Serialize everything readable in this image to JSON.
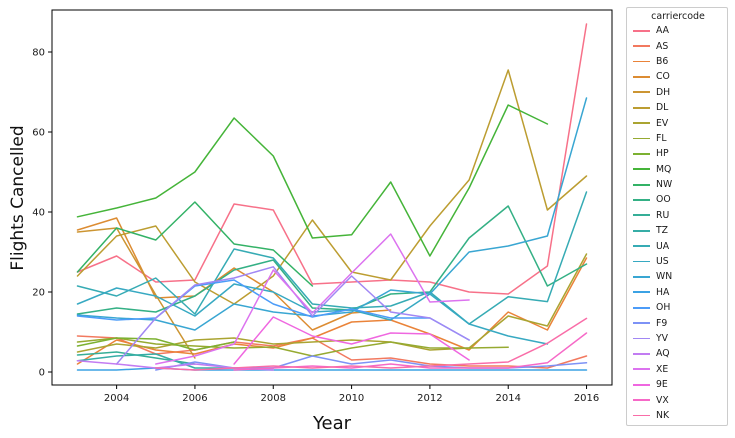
{
  "chart_data": {
    "type": "line",
    "title": "",
    "xlabel": "Year",
    "ylabel": "Flights Cancelled",
    "legend_title": "carriercode",
    "legend_position": "right-outside",
    "grid": false,
    "xlim": [
      2002.35,
      2016.65
    ],
    "ylim": [
      -3.25,
      90.5
    ],
    "x_ticks": [
      2004,
      2006,
      2008,
      2010,
      2012,
      2014,
      2016
    ],
    "y_ticks": [
      0,
      20,
      40,
      60,
      80
    ],
    "series": [
      {
        "name": "AA",
        "color": "#f77189",
        "x": [
          2003,
          2004,
          2005,
          2006,
          2007,
          2008,
          2009,
          2010,
          2011,
          2012,
          2013,
          2014,
          2015,
          2016
        ],
        "y": [
          25,
          29,
          22.5,
          23,
          42,
          40.5,
          22,
          22.5,
          23,
          22.5,
          20,
          19.5,
          26.5,
          87
        ]
      },
      {
        "name": "AS",
        "color": "#f2795f",
        "x": [
          2003,
          2004,
          2005,
          2006,
          2007,
          2008,
          2009,
          2010,
          2011,
          2012,
          2013,
          2014,
          2015,
          2016
        ],
        "y": [
          9,
          8.5,
          4.5,
          5.5,
          7.5,
          6.5,
          8.5,
          3,
          3.5,
          2,
          1.5,
          1.5,
          1,
          4
        ]
      },
      {
        "name": "B6",
        "color": "#ea8339",
        "x": [
          2003,
          2004,
          2005,
          2006,
          2007,
          2008,
          2009,
          2010,
          2011,
          2012,
          2013,
          2014,
          2015,
          2016
        ],
        "y": [
          2,
          8,
          5.5,
          4.5,
          7,
          6,
          8.5,
          12.5,
          13,
          9.5,
          5.5,
          15,
          10.5,
          28.5
        ]
      },
      {
        "name": "CO",
        "color": "#dc8c32",
        "x": [
          2003,
          2004,
          2005,
          2006,
          2007,
          2008,
          2009,
          2010,
          2011
        ],
        "y": [
          35.5,
          38.5,
          18.5,
          19,
          26,
          20,
          10.5,
          14.75,
          15.5
        ]
      },
      {
        "name": "DH",
        "color": "#cc9532",
        "x": [
          2003,
          2004,
          2005,
          2006
        ],
        "y": [
          35,
          36,
          19.25,
          3.5
        ]
      },
      {
        "name": "DL",
        "color": "#bc9d31",
        "x": [
          2003,
          2004,
          2005,
          2006,
          2007,
          2008,
          2009,
          2010,
          2011,
          2012,
          2013,
          2014,
          2015,
          2016
        ],
        "y": [
          24,
          34,
          36.5,
          22.5,
          17,
          24,
          38,
          25,
          23,
          36.5,
          48,
          75.5,
          40.5,
          49
        ]
      },
      {
        "name": "EV",
        "color": "#aaa431",
        "x": [
          2003,
          2004,
          2005,
          2006,
          2007,
          2008,
          2009,
          2010,
          2011,
          2012,
          2013,
          2014,
          2015,
          2016
        ],
        "y": [
          5,
          7,
          6,
          8,
          8.5,
          7,
          7.5,
          8,
          7.5,
          5.5,
          6,
          14,
          11.5,
          29.5
        ]
      },
      {
        "name": "FL",
        "color": "#96aa31",
        "x": [
          2003,
          2004,
          2005,
          2006,
          2007,
          2008,
          2009,
          2010,
          2011,
          2012,
          2013,
          2014
        ],
        "y": [
          7.5,
          8.5,
          7,
          6.5,
          6,
          6.25,
          4,
          6,
          7.5,
          6,
          6,
          6.2
        ]
      },
      {
        "name": "HP",
        "color": "#7cb131",
        "x": [
          2003,
          2004,
          2005,
          2006,
          2007
        ],
        "y": [
          6.5,
          8.5,
          8.25,
          5.5,
          7.5
        ]
      },
      {
        "name": "MQ",
        "color": "#45b439",
        "x": [
          2003,
          2004,
          2005,
          2006,
          2007,
          2008,
          2009,
          2010,
          2011,
          2012,
          2013,
          2014,
          2015
        ],
        "y": [
          38.8,
          41,
          43.5,
          50,
          63.5,
          54,
          33.5,
          34.3,
          47.5,
          29,
          46,
          66.75,
          62
        ]
      },
      {
        "name": "NW",
        "color": "#33b266",
        "x": [
          2003,
          2004,
          2005,
          2006,
          2007,
          2008,
          2009
        ],
        "y": [
          25,
          36,
          33,
          42.5,
          32,
          30.5,
          21.5
        ]
      },
      {
        "name": "OO",
        "color": "#34b085",
        "x": [
          2003,
          2004,
          2005,
          2006,
          2007,
          2008,
          2009,
          2010,
          2011,
          2012,
          2013,
          2014,
          2015,
          2016
        ],
        "y": [
          14.5,
          16,
          15,
          19,
          25.5,
          28,
          16,
          15.5,
          19.5,
          20,
          33.5,
          41.5,
          21.5,
          27
        ]
      },
      {
        "name": "RU",
        "color": "#35ae97",
        "x": [
          2003,
          2004,
          2005,
          2006
        ],
        "y": [
          4.25,
          5,
          3.5,
          2
        ]
      },
      {
        "name": "TZ",
        "color": "#36ada6",
        "x": [
          2003,
          2004,
          2005,
          2006,
          2007,
          2008
        ],
        "y": [
          2.8,
          4,
          4.5,
          1,
          1,
          1
        ]
      },
      {
        "name": "UA",
        "color": "#36abb4",
        "x": [
          2003,
          2004,
          2005,
          2006,
          2007,
          2008,
          2009,
          2010,
          2011,
          2012,
          2013,
          2014,
          2015,
          2016
        ],
        "y": [
          21.5,
          19,
          23.5,
          14.5,
          30.75,
          28.5,
          17,
          16,
          16.5,
          20,
          12,
          18.8,
          17.6,
          45
        ]
      },
      {
        "name": "US",
        "color": "#37a9c2",
        "x": [
          2003,
          2004,
          2005,
          2006,
          2007,
          2008,
          2009,
          2010,
          2011,
          2012,
          2013,
          2014,
          2015
        ],
        "y": [
          17,
          21,
          19,
          14,
          22,
          20,
          15,
          15.5,
          13,
          19.5,
          12,
          9,
          7
        ]
      },
      {
        "name": "WN",
        "color": "#39a6d2",
        "x": [
          2003,
          2004,
          2005,
          2006,
          2007,
          2008,
          2009,
          2010,
          2011,
          2012,
          2013,
          2014,
          2015,
          2016
        ],
        "y": [
          14.25,
          13.5,
          13,
          10.5,
          17,
          15,
          14,
          15,
          20.5,
          19.5,
          30,
          31.5,
          34,
          68.5
        ]
      },
      {
        "name": "HA",
        "color": "#3ba2e4",
        "x": [
          2003,
          2004,
          2005,
          2006,
          2007,
          2008,
          2009,
          2010,
          2011,
          2012,
          2013,
          2014,
          2015,
          2016
        ],
        "y": [
          0.5,
          0.5,
          1,
          0.5,
          0.5,
          0.5,
          0.5,
          0.5,
          0.5,
          0.5,
          0.5,
          0.5,
          0.5,
          0.5
        ]
      },
      {
        "name": "OH",
        "color": "#4c9cf8",
        "x": [
          2003,
          2004,
          2005,
          2006,
          2007,
          2008,
          2009,
          2010,
          2011,
          2012,
          2013
        ],
        "y": [
          14,
          13,
          13.5,
          21.5,
          23,
          17,
          13.75,
          15.75,
          13.5,
          13.5,
          8
        ]
      },
      {
        "name": "F9",
        "color": "#7d92f6",
        "x": [
          2005,
          2006,
          2007,
          2008,
          2009,
          2010,
          2011,
          2012,
          2013,
          2014,
          2015,
          2016
        ],
        "y": [
          0.5,
          2.5,
          1,
          1,
          4,
          2,
          3,
          1.5,
          1,
          1,
          1.5,
          2.3
        ]
      },
      {
        "name": "YV",
        "color": "#a187f4",
        "x": [
          2004,
          2005,
          2006,
          2007,
          2008,
          2009,
          2010,
          2011,
          2012,
          2013
        ],
        "y": [
          2,
          13.5,
          21.75,
          23.5,
          26.3,
          14,
          24,
          15,
          13.5,
          8
        ]
      },
      {
        "name": "AQ",
        "color": "#c27cf2",
        "x": [
          2003,
          2004,
          2005,
          2006,
          2007,
          2008
        ],
        "y": [
          2.8,
          2,
          1,
          2,
          1,
          0.5
        ]
      },
      {
        "name": "XE",
        "color": "#dc73ef",
        "x": [
          2005,
          2006,
          2007,
          2008,
          2009,
          2010,
          2011,
          2012,
          2013
        ],
        "y": [
          2,
          4,
          7,
          25.5,
          14.75,
          24.75,
          34.5,
          17.5,
          18
        ]
      },
      {
        "name": "9E",
        "color": "#ef67e0",
        "x": [
          2007,
          2008,
          2009,
          2010,
          2011,
          2012,
          2013
        ],
        "y": [
          2,
          13.75,
          9,
          7,
          9.75,
          9.5,
          3
        ]
      },
      {
        "name": "VX",
        "color": "#f669c7",
        "x": [
          2007,
          2008,
          2009,
          2010,
          2011,
          2012,
          2013,
          2014,
          2015,
          2016
        ],
        "y": [
          0.5,
          1,
          1.5,
          1,
          2,
          1,
          1,
          1,
          2.3,
          9.75
        ]
      },
      {
        "name": "NK",
        "color": "#f96da8",
        "x": [
          2005,
          2006,
          2007,
          2008,
          2009,
          2010,
          2011,
          2012,
          2013,
          2014,
          2015,
          2016
        ],
        "y": [
          1,
          0.5,
          1,
          1.5,
          1,
          1.5,
          1,
          1.5,
          2,
          2.5,
          7.2,
          13.4
        ]
      }
    ]
  }
}
